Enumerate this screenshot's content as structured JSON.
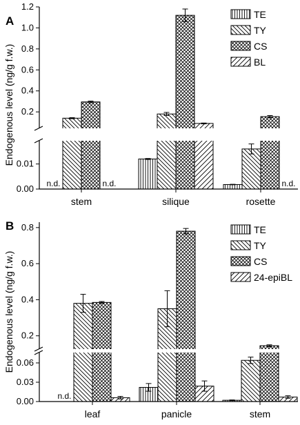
{
  "chart_data": [
    {
      "type": "bar",
      "panel_label": "A",
      "ylabel": "Endogenous level (ng/g f.w.)",
      "categories": [
        "stem",
        "silique",
        "rosette"
      ],
      "y_axis_break": true,
      "lower_range": [
        0,
        0.019
      ],
      "upper_range": [
        0.05,
        1.2
      ],
      "lower_ticks": [
        "0.00",
        "0.01"
      ],
      "upper_ticks": [
        "0.2",
        "0.4",
        "0.6",
        "0.8",
        "1.0",
        "1.2"
      ],
      "lower_tick_values": [
        0,
        0.01
      ],
      "upper_tick_values": [
        0.2,
        0.4,
        0.6,
        0.8,
        1.0,
        1.2
      ],
      "legend_position": "top-right",
      "not_detected_label": "n.d.",
      "series": [
        {
          "name": "TE",
          "pattern": "vertical",
          "values": [
            null,
            0.012,
            0.0018
          ],
          "errors": [
            0,
            0.0002,
            0.0001
          ]
        },
        {
          "name": "TY",
          "pattern": "backslash",
          "values": [
            0.14,
            0.18,
            0.016
          ],
          "errors": [
            0.005,
            0.015,
            0.002
          ]
        },
        {
          "name": "CS",
          "pattern": "crosshatch",
          "values": [
            0.295,
            1.12,
            0.155
          ],
          "errors": [
            0.008,
            0.06,
            0.01
          ]
        },
        {
          "name": "BL",
          "pattern": "slash",
          "values": [
            null,
            0.09,
            null
          ],
          "errors": [
            0,
            0.004,
            0
          ]
        }
      ]
    },
    {
      "type": "bar",
      "panel_label": "B",
      "ylabel": "Endogenous level (ng/g f.w.)",
      "categories": [
        "leaf",
        "panicle",
        "stem"
      ],
      "y_axis_break": true,
      "lower_range": [
        0,
        0.075
      ],
      "upper_range": [
        0.13,
        0.83
      ],
      "lower_ticks": [
        "0.00",
        "0.03",
        "0.06"
      ],
      "upper_ticks": [
        "0.2",
        "0.4",
        "0.6",
        "0.8"
      ],
      "lower_tick_values": [
        0,
        0.03,
        0.06
      ],
      "upper_tick_values": [
        0.2,
        0.4,
        0.6,
        0.8
      ],
      "legend_position": "top-right",
      "not_detected_label": "n.d.",
      "series": [
        {
          "name": "TE",
          "pattern": "vertical",
          "values": [
            null,
            0.022,
            0.002
          ],
          "errors": [
            0,
            0.006,
            0.0005
          ]
        },
        {
          "name": "TY",
          "pattern": "backslash",
          "values": [
            0.38,
            0.35,
            0.064
          ],
          "errors": [
            0.05,
            0.1,
            0.005
          ]
        },
        {
          "name": "CS",
          "pattern": "crosshatch",
          "values": [
            0.385,
            0.78,
            0.145
          ],
          "errors": [
            0.005,
            0.015,
            0.005
          ]
        },
        {
          "name": "24-epiBL",
          "pattern": "slash",
          "values": [
            0.006,
            0.024,
            0.007
          ],
          "errors": [
            0.002,
            0.008,
            0.002
          ]
        }
      ]
    }
  ]
}
